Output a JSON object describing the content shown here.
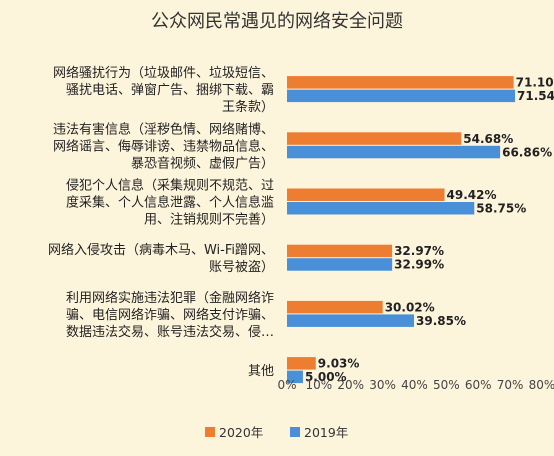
{
  "chart_data": {
    "type": "bar",
    "orientation": "horizontal",
    "title": "公众网民常遇见的网络安全问题",
    "categories": [
      "网络骚扰行为（垃圾邮件、垃圾短信、骚扰电话、弹窗广告、捆绑下载、霸王条款）",
      "违法有害信息（淫秽色情、网络赌博、网络谣言、侮辱诽谤、违禁物品信息、暴恐音视频、虚假广告）",
      "侵犯个人信息（采集规则不规范、过度采集、个人信息泄露、个人信息滥用、注销规则不完善）",
      "网络入侵攻击（病毒木马、Wi-Fi蹭网、账号被盗）",
      "利用网络实施违法犯罪（金融网络诈骗、电信网络诈骗、网络支付诈骗、数据违法交易、账号违法交易、侵…",
      "其他"
    ],
    "category_lines": [
      [
        "网络骚扰行为（垃圾邮件、垃圾短信、",
        "骚扰电话、弹窗广告、捆绑下载、霸",
        "王条款）"
      ],
      [
        "违法有害信息（淫秽色情、网络赌博、",
        "网络谣言、侮辱诽谤、违禁物品信息、",
        "暴恐音视频、虚假广告）"
      ],
      [
        "侵犯个人信息（采集规则不规范、过",
        "度采集、个人信息泄露、个人信息滥",
        "用、注销规则不完善）"
      ],
      [
        "网络入侵攻击（病毒木马、Wi-Fi蹭网、",
        "账号被盗）"
      ],
      [
        "利用网络实施违法犯罪（金融网络诈",
        "骗、电信网络诈骗、网络支付诈骗、",
        "数据违法交易、账号违法交易、侵…"
      ],
      [
        "其他"
      ]
    ],
    "series": [
      {
        "name": "2020年",
        "color": "#ed7d31",
        "values": [
          71.1,
          54.68,
          49.42,
          32.97,
          30.02,
          9.03
        ]
      },
      {
        "name": "2019年",
        "color": "#4a90d9",
        "values": [
          71.54,
          66.86,
          58.75,
          32.99,
          39.85,
          5.0
        ]
      }
    ],
    "data_labels": [
      [
        "71.10%",
        "54.68%",
        "49.42%",
        "32.97%",
        "30.02%",
        "9.03%"
      ],
      [
        "71.54%",
        "66.86%",
        "58.75%",
        "32.99%",
        "39.85%",
        "5.00%"
      ]
    ],
    "xlim": [
      0,
      80
    ],
    "xticks": [
      0,
      10,
      20,
      30,
      40,
      50,
      60,
      70,
      80
    ],
    "xtick_labels": [
      "0%",
      "10%",
      "20%",
      "30%",
      "40%",
      "50%",
      "60%",
      "70%",
      "80%"
    ],
    "grid": false,
    "legend": {
      "position": "bottom-center",
      "entries": [
        "2020年",
        "2019年"
      ]
    }
  }
}
